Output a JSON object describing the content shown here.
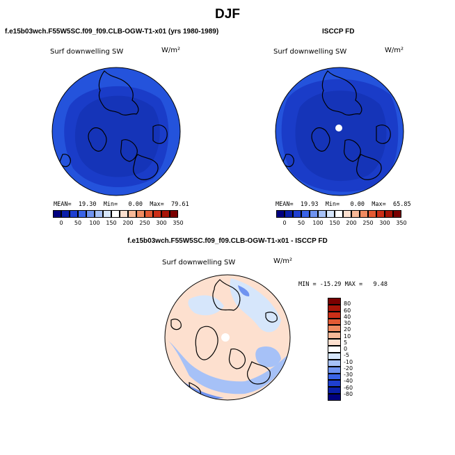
{
  "page": {
    "title": "DJF"
  },
  "panels": [
    {
      "title": "f.e15b03wch.F55W5SC.f09_f09.CLB-OGW-T1-x01 (yrs 1980-1989)",
      "variable": "Surf downwelling SW",
      "units": "W/m²",
      "stats": {
        "mean_label": "MEAN=",
        "mean": "19.30",
        "min_label": "Min=",
        "min": "0.00",
        "max_label": "Max=",
        "max": "79.61"
      },
      "colorbar_ticks": [
        "0",
        "50",
        "100",
        "150",
        "200",
        "250",
        "300",
        "350"
      ]
    },
    {
      "title": "ISCCP FD",
      "variable": "Surf downwelling SW",
      "units": "W/m²",
      "stats": {
        "mean_label": "MEAN=",
        "mean": "19.93",
        "min_label": "Min=",
        "min": "0.00",
        "max_label": "Max=",
        "max": "65.85"
      },
      "colorbar_ticks": [
        "0",
        "50",
        "100",
        "150",
        "200",
        "250",
        "300",
        "350"
      ]
    }
  ],
  "difference": {
    "title": "f.e15b03wch.F55W5SC.f09_f09.CLB-OGW-T1-x01 - ISCCP FD",
    "variable": "Surf downwelling SW",
    "units": "W/m²",
    "stats": {
      "min_label": "MIN =",
      "min": "-15.29",
      "max_label": "MAX =",
      "max": "9.48"
    },
    "colorbar_ticks": [
      "80",
      "60",
      "40",
      "30",
      "20",
      "10",
      "5",
      "0",
      "-5",
      "-10",
      "-20",
      "-30",
      "-40",
      "-60",
      "-80"
    ]
  },
  "chart_data": [
    {
      "type": "heatmap",
      "projection": "north-polar-stereographic",
      "title": "f.e15b03wch.F55W5SC.f09_f09.CLB-OGW-T1-x01 (yrs 1980-1989)",
      "variable": "Surf downwelling SW",
      "units": "W/m²",
      "mean": 19.3,
      "min": 0.0,
      "max": 79.61,
      "colorbar_levels": [
        0,
        25,
        50,
        75,
        100,
        125,
        150,
        175,
        200,
        225,
        250,
        275,
        300,
        325,
        350
      ],
      "colorbar_colors": [
        "#00007f",
        "#0a1fa8",
        "#1f3fd0",
        "#3a63e6",
        "#6f93f0",
        "#a6c1f7",
        "#d6e6fb",
        "#ffffff",
        "#fde0cf",
        "#f8b998",
        "#f08b61",
        "#e35a34",
        "#cc2f18",
        "#a81508",
        "#7a0000"
      ],
      "range": [
        0,
        350
      ],
      "legend": "bottom"
    },
    {
      "type": "heatmap",
      "projection": "north-polar-stereographic",
      "title": "ISCCP FD",
      "variable": "Surf downwelling SW",
      "units": "W/m²",
      "mean": 19.93,
      "min": 0.0,
      "max": 65.85,
      "colorbar_levels": [
        0,
        25,
        50,
        75,
        100,
        125,
        150,
        175,
        200,
        225,
        250,
        275,
        300,
        325,
        350
      ],
      "range": [
        0,
        350
      ],
      "legend": "bottom"
    },
    {
      "type": "heatmap",
      "projection": "north-polar-stereographic",
      "title": "f.e15b03wch.F55W5SC.f09_f09.CLB-OGW-T1-x01 - ISCCP FD",
      "variable": "Surf downwelling SW",
      "units": "W/m²",
      "min": -15.29,
      "max": 9.48,
      "colorbar_levels": [
        -80,
        -60,
        -40,
        -30,
        -20,
        -10,
        -5,
        0,
        5,
        10,
        20,
        30,
        40,
        60,
        80
      ],
      "colorbar_colors": [
        "#00007f",
        "#0a1fa8",
        "#1f3fd0",
        "#3a63e6",
        "#6f93f0",
        "#a6c1f7",
        "#d6e6fb",
        "#ffffff",
        "#fde0cf",
        "#f8b998",
        "#f08b61",
        "#e35a34",
        "#cc2f18",
        "#a81508",
        "#7a0000"
      ],
      "legend": "right"
    }
  ]
}
